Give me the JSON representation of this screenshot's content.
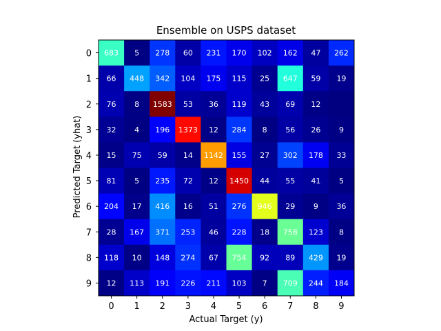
{
  "chart_data": {
    "type": "heatmap",
    "title": "Ensemble on USPS dataset",
    "xlabel": "Actual Target (y)",
    "ylabel": "Predicted Target (yhat)",
    "x_categories": [
      "0",
      "1",
      "2",
      "3",
      "4",
      "5",
      "6",
      "7",
      "8",
      "9"
    ],
    "y_categories": [
      "0",
      "1",
      "2",
      "3",
      "4",
      "5",
      "6",
      "7",
      "8",
      "9"
    ],
    "colormap": "jet",
    "value_range": [
      0,
      1583
    ],
    "values": [
      [
        683,
        5,
        278,
        60,
        231,
        170,
        102,
        162,
        47,
        262
      ],
      [
        66,
        448,
        342,
        104,
        175,
        115,
        25,
        647,
        59,
        19
      ],
      [
        76,
        8,
        1583,
        53,
        36,
        119,
        43,
        69,
        12,
        0
      ],
      [
        32,
        4,
        196,
        1373,
        12,
        284,
        8,
        56,
        26,
        9
      ],
      [
        15,
        75,
        59,
        14,
        1142,
        155,
        27,
        302,
        178,
        33
      ],
      [
        81,
        5,
        235,
        72,
        12,
        1450,
        44,
        55,
        41,
        5
      ],
      [
        204,
        17,
        416,
        16,
        51,
        276,
        946,
        29,
        9,
        36
      ],
      [
        28,
        167,
        371,
        253,
        46,
        228,
        18,
        758,
        123,
        8
      ],
      [
        118,
        10,
        148,
        274,
        67,
        754,
        92,
        89,
        429,
        19
      ],
      [
        12,
        113,
        191,
        226,
        211,
        103,
        7,
        709,
        244,
        184
      ]
    ],
    "labels": [
      [
        "683",
        "5",
        "278",
        "60",
        "231",
        "170",
        "102",
        "162",
        "47",
        "262"
      ],
      [
        "66",
        "448",
        "342",
        "104",
        "175",
        "115",
        "25",
        "647",
        "59",
        "19"
      ],
      [
        "76",
        "8",
        "1583",
        "53",
        "36",
        "119",
        "43",
        "69",
        "12",
        ""
      ],
      [
        "32",
        "4",
        "196",
        "1373",
        "12",
        "284",
        "8",
        "56",
        "26",
        "9"
      ],
      [
        "15",
        "75",
        "59",
        "14",
        "1142",
        "155",
        "27",
        "302",
        "178",
        "33"
      ],
      [
        "81",
        "5",
        "235",
        "72",
        "12",
        "1450",
        "44",
        "55",
        "41",
        "5"
      ],
      [
        "204",
        "17",
        "416",
        "16",
        "51",
        "276",
        "946",
        "29",
        "9",
        "36"
      ],
      [
        "28",
        "167",
        "371",
        "253",
        "46",
        "228",
        "18",
        "758",
        "123",
        "8"
      ],
      [
        "118",
        "10",
        "148",
        "274",
        "67",
        "754",
        "92",
        "89",
        "429",
        "19"
      ],
      [
        "12",
        "113",
        "191",
        "226",
        "211",
        "103",
        "7",
        "709",
        "244",
        "184"
      ]
    ],
    "grid": false
  }
}
